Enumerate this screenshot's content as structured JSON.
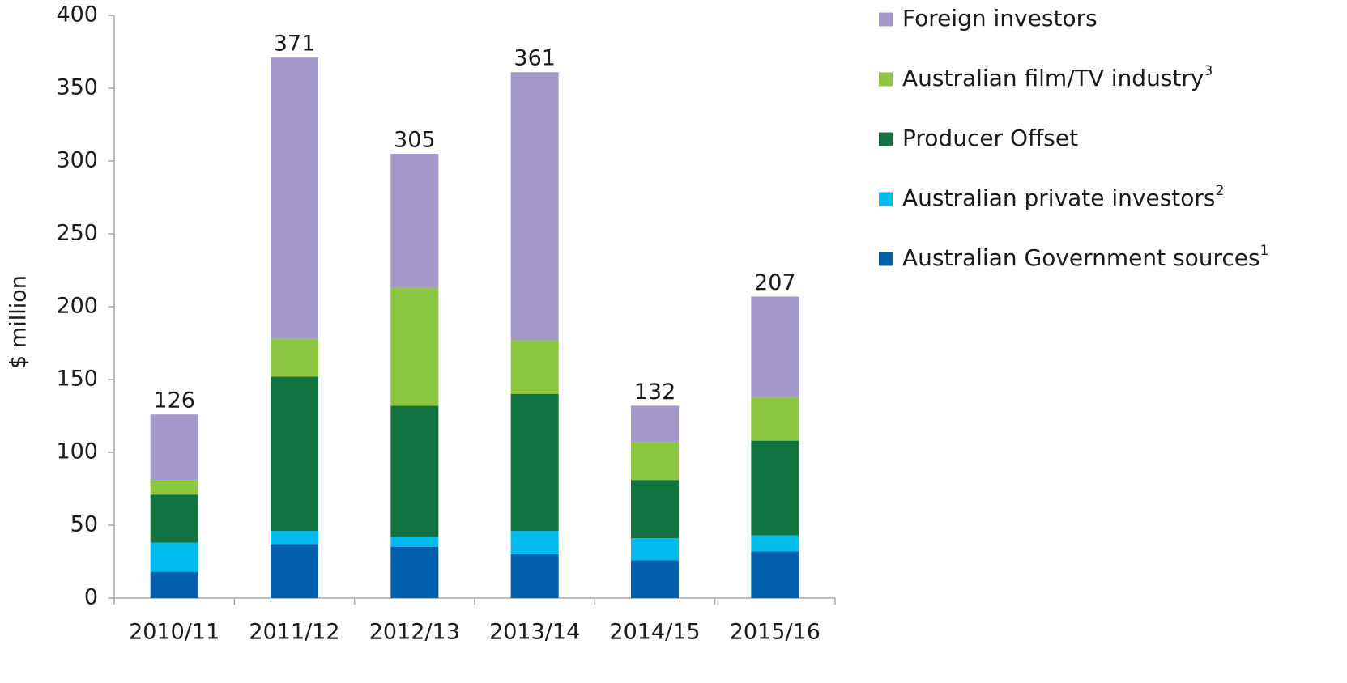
{
  "chart_data": {
    "type": "bar",
    "stacked": true,
    "title": "",
    "xlabel": "",
    "ylabel": "$ million",
    "ylim": [
      0,
      400
    ],
    "yticks": [
      0,
      50,
      100,
      150,
      200,
      250,
      300,
      350,
      400
    ],
    "categories": [
      "2010/11",
      "2011/12",
      "2012/13",
      "2013/14",
      "2014/15",
      "2015/16"
    ],
    "totals": [
      126,
      371,
      305,
      361,
      132,
      207
    ],
    "series": [
      {
        "name": "Australian Government sources",
        "footnote": "1",
        "color": "#0060ac",
        "values": [
          18,
          37,
          35,
          30,
          26,
          32
        ]
      },
      {
        "name": "Australian private investors",
        "footnote": "2",
        "color": "#00b9ee",
        "values": [
          20,
          9,
          7,
          16,
          15,
          11
        ]
      },
      {
        "name": "Producer Offset",
        "footnote": "",
        "color": "#137340",
        "values": [
          33,
          106,
          90,
          94,
          40,
          65
        ]
      },
      {
        "name": "Australian film/TV industry",
        "footnote": "3",
        "color": "#8dc63f",
        "values": [
          10,
          26,
          81,
          37,
          26,
          30
        ]
      },
      {
        "name": "Foreign investors",
        "footnote": "",
        "color": "#a599cb",
        "values": [
          45,
          193,
          92,
          184,
          25,
          69
        ]
      }
    ],
    "legend": {
      "placement": "right",
      "order": [
        "Foreign investors",
        "Australian film/TV industry",
        "Producer Offset",
        "Australian private investors",
        "Australian Government sources"
      ]
    },
    "grid": false
  }
}
